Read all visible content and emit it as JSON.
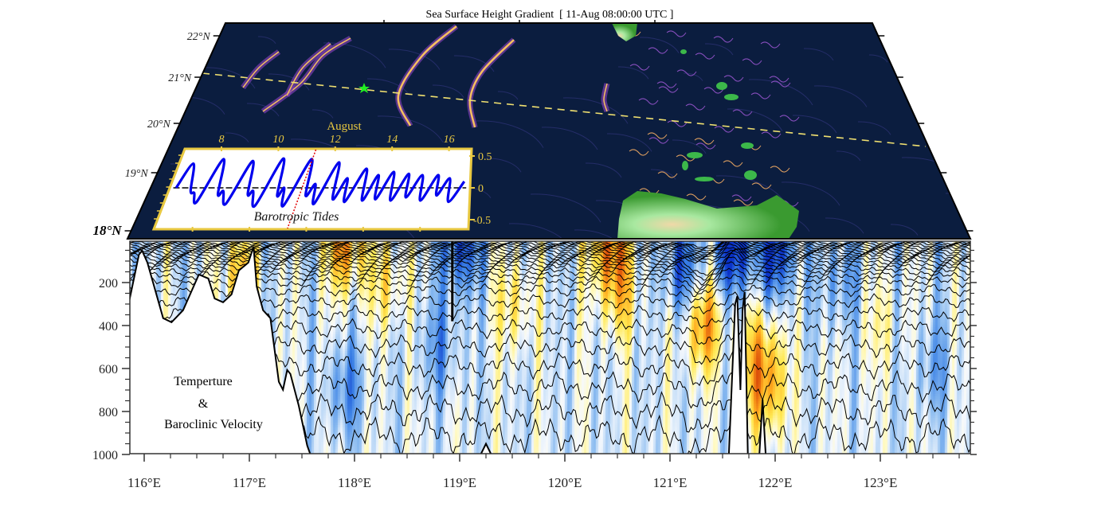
{
  "title": "Sea Surface Height Gradient  [ 11-Aug 08:00:00 UTC ]",
  "map": {
    "lat_labels": [
      "22°N",
      "21°N",
      "20°N",
      "19°N",
      "18°N"
    ],
    "colors": {
      "ocean": "#0b1d3f",
      "wave_front": "#f5c060",
      "wave_glow": "#7a3fb0",
      "land": "#3cb84a",
      "section_line": "#f0e070",
      "station_star": "#22ee22"
    }
  },
  "chart_data": [
    {
      "type": "line",
      "title": "Barotropic Tides",
      "xlabel": "August",
      "x_ticks": [
        "8",
        "10",
        "12",
        "14",
        "16"
      ],
      "x_tick_values": [
        8,
        10,
        12,
        14,
        16
      ],
      "y_ticks": [
        "0.5",
        "0",
        "-0.5"
      ],
      "y_tick_values": [
        0.5,
        0,
        -0.5
      ],
      "ylim": [
        -0.5,
        0.5
      ],
      "current_time": 11.33,
      "series_color": "#0000ee",
      "points": [
        [
          6.9,
          0.0
        ],
        [
          7.2,
          0.38
        ],
        [
          7.45,
          -0.05
        ],
        [
          7.6,
          -0.08
        ],
        [
          7.8,
          -0.22
        ],
        [
          8.2,
          0.45
        ],
        [
          8.45,
          -0.1
        ],
        [
          8.6,
          -0.05
        ],
        [
          8.85,
          -0.25
        ],
        [
          9.25,
          0.42
        ],
        [
          9.5,
          -0.1
        ],
        [
          9.65,
          -0.05
        ],
        [
          9.9,
          -0.28
        ],
        [
          10.3,
          0.46
        ],
        [
          10.55,
          -0.12
        ],
        [
          10.7,
          0.0
        ],
        [
          10.9,
          -0.28
        ],
        [
          11.3,
          0.45
        ],
        [
          11.55,
          -0.12
        ],
        [
          11.75,
          0.06
        ],
        [
          11.95,
          -0.25
        ],
        [
          12.3,
          0.4
        ],
        [
          12.55,
          -0.18
        ],
        [
          12.8,
          0.15
        ],
        [
          13.0,
          -0.22
        ],
        [
          13.35,
          0.3
        ],
        [
          13.6,
          -0.2
        ],
        [
          13.85,
          0.2
        ],
        [
          14.05,
          -0.18
        ],
        [
          14.35,
          0.25
        ],
        [
          14.6,
          -0.2
        ],
        [
          14.9,
          0.22
        ],
        [
          15.1,
          -0.15
        ],
        [
          15.4,
          0.2
        ],
        [
          15.65,
          -0.2
        ],
        [
          15.95,
          0.2
        ],
        [
          16.15,
          -0.12
        ],
        [
          16.4,
          0.15
        ],
        [
          16.65,
          -0.22
        ],
        [
          16.95,
          0.1
        ]
      ]
    },
    {
      "type": "heatmap",
      "title_lines": [
        "Temperture",
        "&",
        "Baroclinic Velocity"
      ],
      "xlabel": "",
      "ylabel": "",
      "x_ticks": [
        "116°E",
        "117°E",
        "118°E",
        "119°E",
        "120°E",
        "121°E",
        "122°E",
        "123°E"
      ],
      "x_tick_values": [
        116,
        117,
        118,
        119,
        120,
        121,
        122,
        123
      ],
      "y_ticks": [
        "200",
        "400",
        "600",
        "800",
        "1000"
      ],
      "y_tick_values": [
        200,
        400,
        600,
        800,
        1000
      ],
      "xlim": [
        115.86,
        123.86
      ],
      "ylim": [
        1000,
        8
      ],
      "isotherm_base_depths": [
        14,
        20,
        27,
        34,
        42,
        50,
        59,
        68,
        78,
        89,
        101,
        115,
        131,
        150,
        172,
        198,
        235,
        285,
        345,
        415,
        495,
        585,
        685,
        795,
        915
      ],
      "bathymetry": [
        [
          115.86,
          281
        ],
        [
          115.95,
          70
        ],
        [
          115.98,
          52
        ],
        [
          116.03,
          107
        ],
        [
          116.18,
          366
        ],
        [
          116.26,
          385
        ],
        [
          116.37,
          329
        ],
        [
          116.52,
          163
        ],
        [
          116.61,
          181
        ],
        [
          116.67,
          274
        ],
        [
          116.75,
          292
        ],
        [
          116.83,
          255
        ],
        [
          116.9,
          144
        ],
        [
          116.99,
          107
        ],
        [
          117.04,
          33
        ],
        [
          117.07,
          218
        ],
        [
          117.13,
          329
        ],
        [
          117.2,
          366
        ],
        [
          117.24,
          514
        ],
        [
          117.28,
          662
        ],
        [
          117.32,
          699
        ],
        [
          117.36,
          607
        ],
        [
          117.39,
          625
        ],
        [
          117.47,
          773
        ],
        [
          117.55,
          958
        ],
        [
          117.58,
          1000
        ],
        [
          119.2,
          1000
        ],
        [
          119.25,
          950
        ],
        [
          119.3,
          1000
        ],
        [
          121.56,
          1000
        ],
        [
          121.62,
          300
        ],
        [
          121.64,
          263
        ],
        [
          121.67,
          700
        ],
        [
          121.69,
          330
        ],
        [
          121.71,
          244
        ],
        [
          121.74,
          1000
        ],
        [
          121.85,
          1000
        ],
        [
          121.88,
          744
        ],
        [
          121.91,
          1000
        ],
        [
          123.86,
          1000
        ]
      ],
      "velocity_features": [
        {
          "lon": 121.3,
          "depth": 400,
          "value": 1.0
        },
        {
          "lon": 121.9,
          "depth": 700,
          "value": 1.0
        },
        {
          "lon": 121.85,
          "depth": 500,
          "value": 0.6
        },
        {
          "lon": 121.6,
          "depth": 40,
          "value": -1.0
        },
        {
          "lon": 122.0,
          "depth": 60,
          "value": -0.9
        },
        {
          "lon": 121.1,
          "depth": 150,
          "value": -0.7
        },
        {
          "lon": 117.9,
          "depth": 30,
          "value": 0.9
        },
        {
          "lon": 116.9,
          "depth": 180,
          "value": 0.7
        },
        {
          "lon": 120.4,
          "depth": 20,
          "value": 0.9
        },
        {
          "lon": 120.5,
          "depth": 250,
          "value": 0.6
        },
        {
          "lon": 119.5,
          "depth": 300,
          "value": 0.5
        },
        {
          "lon": 118.3,
          "depth": 200,
          "value": 0.5
        },
        {
          "lon": 119.0,
          "depth": 30,
          "value": -0.8
        },
        {
          "lon": 118.8,
          "depth": 500,
          "value": -0.5
        },
        {
          "lon": 117.9,
          "depth": 700,
          "value": -0.6
        },
        {
          "lon": 123.0,
          "depth": 400,
          "value": 0.3
        },
        {
          "lon": 122.6,
          "depth": 200,
          "value": -0.4
        },
        {
          "lon": 123.5,
          "depth": 600,
          "value": -0.4
        }
      ]
    }
  ]
}
